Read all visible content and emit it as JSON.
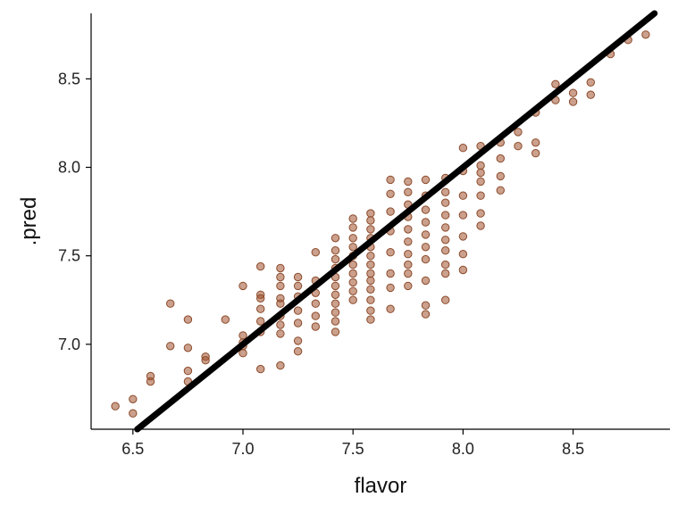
{
  "chart_data": {
    "type": "scatter",
    "xlabel": "flavor",
    "ylabel": ".pred",
    "xlim": [
      6.31,
      8.94
    ],
    "ylim": [
      6.52,
      8.87
    ],
    "xticks": [
      6.5,
      7.0,
      7.5,
      8.0,
      8.5
    ],
    "yticks": [
      7.0,
      7.5,
      8.0,
      8.5
    ],
    "xtick_labels": [
      "6.5",
      "7.0",
      "7.5",
      "8.0",
      "8.5"
    ],
    "ytick_labels": [
      "7.0",
      "7.5",
      "8.0",
      "8.5"
    ],
    "grid": false,
    "point_color": "#a0522d",
    "point_stroke": "#8b4a2b",
    "line_color": "#000000",
    "line": {
      "slope": 1,
      "intercept": 0
    },
    "series": [
      {
        "points": [
          [
            6.42,
            6.65
          ],
          [
            6.5,
            6.69
          ],
          [
            6.5,
            6.61
          ],
          [
            6.58,
            6.82
          ],
          [
            6.58,
            6.79
          ],
          [
            6.67,
            7.23
          ],
          [
            6.67,
            6.99
          ],
          [
            6.75,
            7.14
          ],
          [
            6.75,
            6.98
          ],
          [
            6.75,
            6.85
          ],
          [
            6.75,
            6.79
          ],
          [
            6.83,
            6.93
          ],
          [
            6.83,
            6.91
          ],
          [
            6.92,
            7.14
          ],
          [
            7.0,
            7.33
          ],
          [
            7.0,
            7.05
          ],
          [
            7.0,
            7.01
          ],
          [
            7.0,
            6.99
          ],
          [
            7.0,
            6.95
          ],
          [
            7.08,
            7.44
          ],
          [
            7.08,
            7.28
          ],
          [
            7.08,
            7.26
          ],
          [
            7.08,
            7.2
          ],
          [
            7.08,
            7.13
          ],
          [
            7.08,
            7.07
          ],
          [
            7.08,
            6.86
          ],
          [
            7.17,
            7.43
          ],
          [
            7.17,
            7.38
          ],
          [
            7.17,
            7.33
          ],
          [
            7.17,
            7.26
          ],
          [
            7.17,
            7.23
          ],
          [
            7.17,
            7.16
          ],
          [
            7.17,
            7.11
          ],
          [
            7.17,
            7.06
          ],
          [
            7.17,
            6.88
          ],
          [
            7.25,
            7.38
          ],
          [
            7.25,
            7.33
          ],
          [
            7.25,
            7.27
          ],
          [
            7.25,
            7.19
          ],
          [
            7.25,
            7.12
          ],
          [
            7.25,
            7.02
          ],
          [
            7.25,
            6.96
          ],
          [
            7.33,
            7.52
          ],
          [
            7.33,
            7.36
          ],
          [
            7.33,
            7.29
          ],
          [
            7.33,
            7.23
          ],
          [
            7.33,
            7.16
          ],
          [
            7.33,
            7.1
          ],
          [
            7.42,
            7.6
          ],
          [
            7.42,
            7.53
          ],
          [
            7.42,
            7.48
          ],
          [
            7.42,
            7.43
          ],
          [
            7.42,
            7.38
          ],
          [
            7.42,
            7.33
          ],
          [
            7.42,
            7.28
          ],
          [
            7.42,
            7.23
          ],
          [
            7.42,
            7.18
          ],
          [
            7.42,
            7.13
          ],
          [
            7.42,
            7.07
          ],
          [
            7.5,
            7.71
          ],
          [
            7.5,
            7.66
          ],
          [
            7.5,
            7.6
          ],
          [
            7.5,
            7.55
          ],
          [
            7.5,
            7.5
          ],
          [
            7.5,
            7.45
          ],
          [
            7.5,
            7.4
          ],
          [
            7.5,
            7.35
          ],
          [
            7.5,
            7.3
          ],
          [
            7.5,
            7.25
          ],
          [
            7.58,
            7.74
          ],
          [
            7.58,
            7.7
          ],
          [
            7.58,
            7.65
          ],
          [
            7.58,
            7.6
          ],
          [
            7.58,
            7.55
          ],
          [
            7.58,
            7.5
          ],
          [
            7.58,
            7.45
          ],
          [
            7.58,
            7.4
          ],
          [
            7.58,
            7.36
          ],
          [
            7.58,
            7.31
          ],
          [
            7.58,
            7.25
          ],
          [
            7.58,
            7.19
          ],
          [
            7.58,
            7.14
          ],
          [
            7.67,
            7.93
          ],
          [
            7.67,
            7.85
          ],
          [
            7.67,
            7.75
          ],
          [
            7.67,
            7.64
          ],
          [
            7.67,
            7.52
          ],
          [
            7.67,
            7.4
          ],
          [
            7.67,
            7.32
          ],
          [
            7.67,
            7.2
          ],
          [
            7.75,
            7.92
          ],
          [
            7.75,
            7.86
          ],
          [
            7.75,
            7.79
          ],
          [
            7.75,
            7.72
          ],
          [
            7.75,
            7.65
          ],
          [
            7.75,
            7.58
          ],
          [
            7.75,
            7.51
          ],
          [
            7.75,
            7.45
          ],
          [
            7.75,
            7.4
          ],
          [
            7.75,
            7.33
          ],
          [
            7.83,
            7.93
          ],
          [
            7.83,
            7.84
          ],
          [
            7.83,
            7.76
          ],
          [
            7.83,
            7.69
          ],
          [
            7.83,
            7.62
          ],
          [
            7.83,
            7.55
          ],
          [
            7.83,
            7.48
          ],
          [
            7.83,
            7.36
          ],
          [
            7.83,
            7.22
          ],
          [
            7.83,
            7.17
          ],
          [
            7.92,
            7.94
          ],
          [
            7.92,
            7.86
          ],
          [
            7.92,
            7.8
          ],
          [
            7.92,
            7.73
          ],
          [
            7.92,
            7.66
          ],
          [
            7.92,
            7.59
          ],
          [
            7.92,
            7.53
          ],
          [
            7.92,
            7.45
          ],
          [
            7.92,
            7.4
          ],
          [
            7.92,
            7.25
          ],
          [
            8.0,
            8.11
          ],
          [
            8.0,
            7.98
          ],
          [
            8.0,
            7.84
          ],
          [
            8.0,
            7.73
          ],
          [
            8.0,
            7.61
          ],
          [
            8.0,
            7.51
          ],
          [
            8.0,
            7.42
          ],
          [
            8.08,
            8.12
          ],
          [
            8.08,
            8.01
          ],
          [
            8.08,
            7.97
          ],
          [
            8.08,
            7.92
          ],
          [
            8.08,
            7.84
          ],
          [
            8.08,
            7.74
          ],
          [
            8.08,
            7.67
          ],
          [
            8.17,
            8.14
          ],
          [
            8.17,
            8.05
          ],
          [
            8.17,
            7.95
          ],
          [
            8.17,
            7.87
          ],
          [
            8.25,
            8.2
          ],
          [
            8.25,
            8.12
          ],
          [
            8.33,
            8.31
          ],
          [
            8.33,
            8.14
          ],
          [
            8.33,
            8.08
          ],
          [
            8.42,
            8.47
          ],
          [
            8.42,
            8.38
          ],
          [
            8.5,
            8.42
          ],
          [
            8.5,
            8.37
          ],
          [
            8.58,
            8.48
          ],
          [
            8.58,
            8.41
          ],
          [
            8.67,
            8.64
          ],
          [
            8.75,
            8.72
          ],
          [
            8.83,
            8.75
          ]
        ]
      }
    ]
  }
}
